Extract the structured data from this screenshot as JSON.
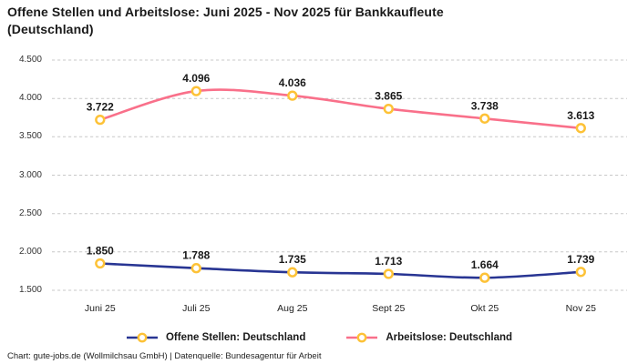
{
  "title": "Offene Stellen und Arbeitslose: Juni 2025 - Nov 2025 für Bankkaufleute (Deutschland)",
  "footer": "Chart: gute-jobs.de (Wollmilchsau GmbH) | Datenquelle: Bundesagentur für Arbeit",
  "colors": {
    "offene_stellen": "#283593",
    "arbeitslose": "#f9708a",
    "marker_ring": "#fdc237",
    "marker_fill": "#ffffff",
    "grid": "#c8c8c8",
    "label_text": "#1a1a1a",
    "axis_text": "#333333"
  },
  "chart_data": {
    "type": "line",
    "title": "Offene Stellen und Arbeitslose: Juni 2025 - Nov 2025 für Bankkaufleute (Deutschland)",
    "categories": [
      "Juni 25",
      "Juli 25",
      "Aug 25",
      "Sept 25",
      "Okt 25",
      "Nov 25"
    ],
    "series": [
      {
        "name": "Offene Stellen: Deutschland",
        "values": [
          1850,
          1788,
          1735,
          1713,
          1664,
          1739
        ],
        "labels": [
          "1.850",
          "1.788",
          "1.735",
          "1.713",
          "1.664",
          "1.739"
        ],
        "color_key": "offene_stellen"
      },
      {
        "name": "Arbeitslose: Deutschland",
        "values": [
          3722,
          4096,
          4036,
          3865,
          3738,
          3613
        ],
        "labels": [
          "3.722",
          "4.096",
          "4.036",
          "3.865",
          "3.738",
          "3.613"
        ],
        "color_key": "arbeitslose"
      }
    ],
    "y_axis": {
      "min": 1500,
      "max": 4500,
      "ticks": [
        4500,
        4000,
        3500,
        3000,
        2500,
        2000,
        1500
      ],
      "tick_labels": [
        "4.500",
        "4.000",
        "3.500",
        "3.000",
        "2.500",
        "2.000",
        "1.500"
      ]
    },
    "grid": "dashed-horizontal",
    "legend_position": "bottom",
    "marker": "ring"
  }
}
